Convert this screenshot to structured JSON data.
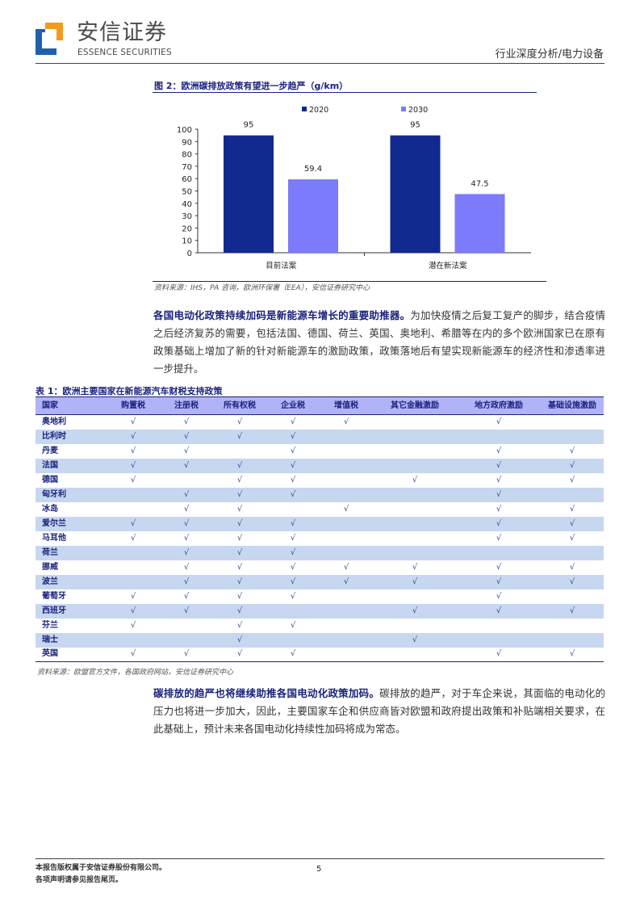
{
  "header": {
    "brand_cn": "安信证券",
    "brand_en": "ESSENCE SECURITIES",
    "section": "行业深度分析/电力设备",
    "brand_colors": {
      "orange": "#f39a1e",
      "blue": "#1f5fae"
    }
  },
  "figure": {
    "title": "图 2：欧洲碳排放政策有望进一步趋严（g/km）",
    "source": "资料来源：IHS，PA 咨询，欧洲环保署（EEA），安信证券研究中心"
  },
  "chart_data": {
    "type": "bar",
    "title": "",
    "xlabel": "",
    "ylabel": "",
    "ylim": [
      0,
      100
    ],
    "yticks": [
      0,
      10,
      20,
      30,
      40,
      50,
      60,
      70,
      80,
      90,
      100
    ],
    "categories": [
      "目前法案",
      "潜在新法案"
    ],
    "series": [
      {
        "name": "2020",
        "values": [
          95,
          95
        ],
        "color": "#12298f"
      },
      {
        "name": "2030",
        "values": [
          59.4,
          47.5
        ],
        "color": "#7b7bfb"
      }
    ],
    "data_labels": [
      [
        "95",
        "95"
      ],
      [
        "59.4",
        "47.5"
      ]
    ],
    "legend": "top",
    "grid": false
  },
  "para1": {
    "bold": "各国电动化政策持续加码是新能源车增长的重要助推器。",
    "text": "为加快疫情之后复工复产的脚步，结合疫情之后经济复苏的需要，包括法国、德国、荷兰、英国、奥地利、希腊等在内的多个欧洲国家已在原有政策基础上增加了新的针对新能源车的激励政策，政策落地后有望实现新能源车的经济性和渗透率进一步提升。"
  },
  "table": {
    "title": "表 1：欧洲主要国家在新能源汽车财税支持政策",
    "headers": [
      "国家",
      "购置税",
      "注册税",
      "所有权税",
      "企业税",
      "增值税",
      "其它金融激励",
      "地方政府激励",
      "基础设施激励"
    ],
    "rows": [
      [
        "奥地利",
        "√",
        "√",
        "√",
        "√",
        "√",
        "",
        "√",
        ""
      ],
      [
        "比利时",
        "√",
        "√",
        "√",
        "√",
        "",
        "",
        "",
        ""
      ],
      [
        "丹麦",
        "√",
        "√",
        "",
        "√",
        "",
        "",
        "√",
        "√"
      ],
      [
        "法国",
        "√",
        "√",
        "√",
        "√",
        "",
        "",
        "√",
        "√"
      ],
      [
        "德国",
        "√",
        "",
        "√",
        "√",
        "",
        "√",
        "√",
        "√"
      ],
      [
        "匈牙利",
        "",
        "√",
        "√",
        "√",
        "",
        "",
        "√",
        ""
      ],
      [
        "冰岛",
        "",
        "√",
        "√",
        "",
        "√",
        "",
        "√",
        "√"
      ],
      [
        "爱尔兰",
        "√",
        "√",
        "√",
        "√",
        "",
        "",
        "√",
        "√"
      ],
      [
        "马耳他",
        "√",
        "√",
        "√",
        "√",
        "",
        "",
        "√",
        "√"
      ],
      [
        "荷兰",
        "",
        "√",
        "√",
        "√",
        "",
        "",
        "",
        ""
      ],
      [
        "挪威",
        "",
        "√",
        "√",
        "√",
        "√",
        "√",
        "√",
        "√"
      ],
      [
        "波兰",
        "",
        "√",
        "√",
        "√",
        "√",
        "√",
        "√",
        "√"
      ],
      [
        "葡萄牙",
        "√",
        "√",
        "√",
        "√",
        "",
        "",
        "√",
        ""
      ],
      [
        "西班牙",
        "√",
        "√",
        "√",
        "",
        "",
        "√",
        "√",
        "√"
      ],
      [
        "芬兰",
        "√",
        "",
        "√",
        "√",
        "",
        "",
        "",
        ""
      ],
      [
        "瑞士",
        "",
        "",
        "√",
        "",
        "",
        "√",
        "",
        ""
      ],
      [
        "英国",
        "√",
        "√",
        "√",
        "√",
        "",
        "",
        "√",
        "√"
      ]
    ],
    "source": "资料来源：欧盟官方文件，各国政府网站，安信证券研究中心"
  },
  "para2": {
    "bold": "碳排放的趋严也将继续助推各国电动化政策加码。",
    "text": "碳排放的趋严，对于车企来说，其面临的电动化的压力也将进一步加大，因此，主要国家车企和供应商皆对欧盟和政府提出政策和补贴端相关要求，在此基础上，预计未来各国电动化持续性加码将成为常态。"
  },
  "footer": {
    "line1": "本报告版权属于安信证券股份有限公司。",
    "line2": "各项声明请参见报告尾页。",
    "page": "5"
  }
}
